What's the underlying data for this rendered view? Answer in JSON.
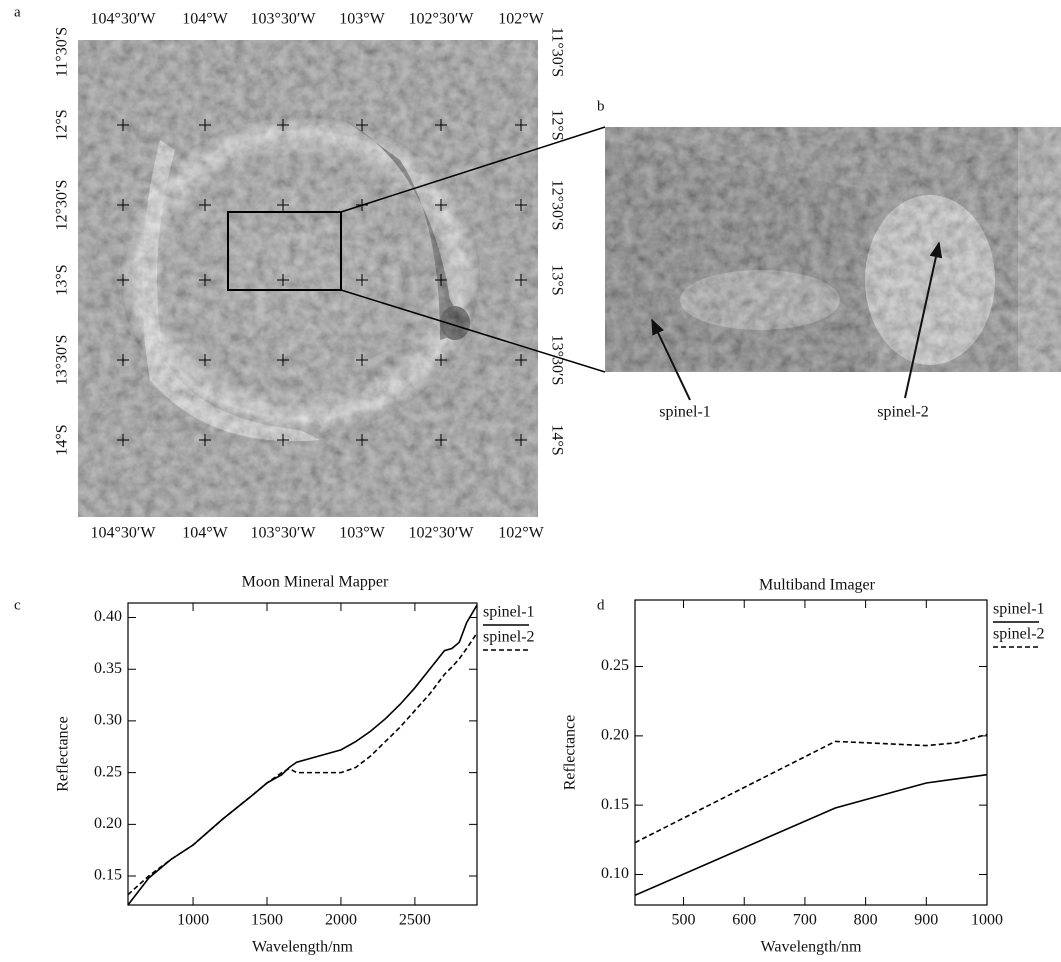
{
  "map": {
    "panel_label": "a",
    "top_labels": [
      "104°30′W",
      "104°W",
      "103°30′W",
      "103°W",
      "102°30′W",
      "102°W"
    ],
    "bottom_labels": [
      "104°30′W",
      "104°W",
      "103°30′W",
      "103°W",
      "102°30′W",
      "102°W"
    ],
    "left_labels": [
      "11°30′S",
      "12°S",
      "12°30′S",
      "13°S",
      "13°30′S",
      "14°S"
    ],
    "right_labels": [
      "11°30′S",
      "12°S",
      "12°30′S",
      "13°S",
      "13°30′S",
      "14°S"
    ]
  },
  "inset": {
    "panel_label": "b",
    "annotations": [
      "spinel-1",
      "spinel-2"
    ]
  },
  "chart_data": [
    {
      "type": "line",
      "panel_label": "c",
      "title": "Moon Mineral Mapper",
      "x_label": "Wavelength/nm",
      "y_label": "Reflectance",
      "x": [
        560,
        700,
        850,
        1000,
        1200,
        1400,
        1500,
        1600,
        1650,
        1700,
        1800,
        1900,
        2000,
        2100,
        2200,
        2300,
        2400,
        2500,
        2600,
        2700,
        2750,
        2800,
        2850,
        2920
      ],
      "series": [
        {
          "name": "spinel-1",
          "color": "#000000",
          "line_style": "solid",
          "values": [
            0.122,
            0.148,
            0.166,
            0.18,
            0.205,
            0.228,
            0.24,
            0.248,
            0.255,
            0.26,
            0.264,
            0.268,
            0.272,
            0.28,
            0.29,
            0.302,
            0.316,
            0.332,
            0.35,
            0.368,
            0.37,
            0.376,
            0.395,
            0.412
          ]
        },
        {
          "name": "spinel-2",
          "color": "#000000",
          "line_style": "dashed",
          "values": [
            0.132,
            0.15,
            0.166,
            0.18,
            0.205,
            0.228,
            0.24,
            0.25,
            0.254,
            0.25,
            0.25,
            0.25,
            0.25,
            0.255,
            0.266,
            0.28,
            0.294,
            0.31,
            0.326,
            0.345,
            0.352,
            0.36,
            0.37,
            0.385
          ]
        }
      ],
      "xlim": [
        560,
        2920
      ],
      "ylim": [
        0.122,
        0.414
      ],
      "xticks": [
        1000,
        1500,
        2000,
        2500
      ],
      "yticks": [
        0.15,
        {
          "value": 0.2,
          "label": "0.20"
        },
        0.25,
        {
          "value": 0.3,
          "label": "0.30"
        },
        0.35,
        {
          "value": 0.4,
          "label": "0.40"
        }
      ]
    },
    {
      "type": "line",
      "panel_label": "d",
      "title": "Multiband Imager",
      "x_label": "Wavelength/nm",
      "y_label": "Reflectance",
      "x": [
        420,
        750,
        900,
        950,
        1000
      ],
      "series": [
        {
          "name": "spinel-1",
          "color": "#000000",
          "line_style": "solid",
          "values": [
            0.085,
            0.148,
            0.166,
            0.169,
            0.172
          ]
        },
        {
          "name": "spinel-2",
          "color": "#000000",
          "line_style": "dashed",
          "values": [
            0.123,
            0.196,
            0.193,
            0.195,
            0.201
          ]
        }
      ],
      "xlim": [
        420,
        1000
      ],
      "ylim": [
        0.078,
        0.298
      ],
      "xticks": [
        500,
        600,
        700,
        800,
        900,
        1000
      ],
      "yticks": [
        {
          "value": 0.1,
          "label": "0.10"
        },
        0.15,
        {
          "value": 0.2,
          "label": "0.20"
        },
        0.25
      ]
    }
  ]
}
